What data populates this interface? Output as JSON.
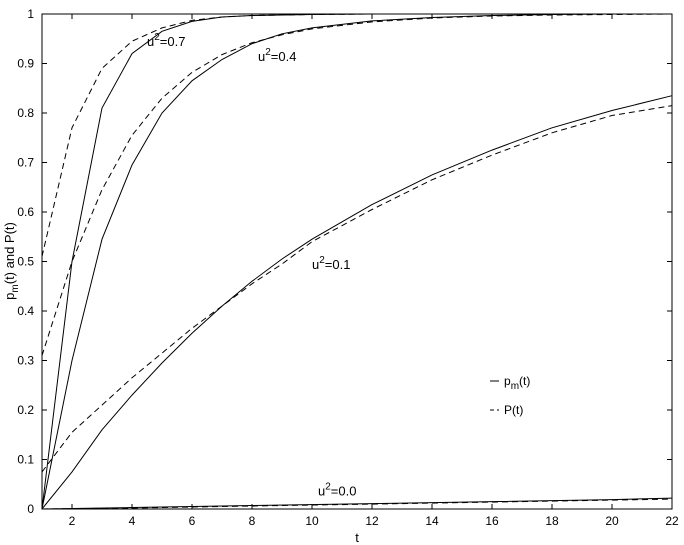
{
  "chart_data": {
    "type": "line",
    "title": "",
    "xlabel": "t",
    "ylabel": {
      "prefix": "p",
      "sub": "m",
      "suffix": "(t) and P(t)"
    },
    "xlim": [
      1,
      22
    ],
    "ylim": [
      0,
      1
    ],
    "xticks": [
      2,
      4,
      6,
      8,
      10,
      12,
      14,
      16,
      18,
      20,
      22
    ],
    "yticks": [
      0,
      0.1,
      0.2,
      0.3,
      0.4,
      0.5,
      0.6,
      0.7,
      0.8,
      0.9,
      1
    ],
    "grid": false,
    "legend": {
      "placement": "lower-right inside plot",
      "entries": [
        {
          "base": "p",
          "sub": "m",
          "rest": "(t)",
          "style": "solid"
        },
        {
          "base": "P(t)",
          "sub": "",
          "rest": "",
          "style": "dashed"
        }
      ]
    },
    "series": [
      {
        "style": "solid",
        "curve": "u2=0.7",
        "x": [
          1,
          2,
          3,
          4,
          5,
          6,
          7,
          8,
          10,
          12,
          14,
          16,
          18,
          20,
          22
        ],
        "y": [
          0,
          0.5,
          0.81,
          0.92,
          0.965,
          0.985,
          0.994,
          0.997,
          0.999,
          1,
          1,
          1,
          1,
          1,
          1
        ]
      },
      {
        "style": "dashed",
        "curve": "u2=0.7",
        "x": [
          1,
          2,
          3,
          4,
          5,
          6,
          7,
          8,
          10,
          12,
          14,
          16,
          18,
          20,
          22
        ],
        "y": [
          0.51,
          0.77,
          0.89,
          0.945,
          0.972,
          0.987,
          0.994,
          0.997,
          0.999,
          1,
          1,
          1,
          1,
          1,
          1
        ]
      },
      {
        "style": "solid",
        "curve": "u2=0.4",
        "x": [
          1,
          2,
          3,
          4,
          5,
          6,
          7,
          8,
          9,
          10,
          12,
          14,
          16,
          18,
          20,
          22
        ],
        "y": [
          0,
          0.3,
          0.545,
          0.695,
          0.8,
          0.865,
          0.908,
          0.94,
          0.96,
          0.972,
          0.986,
          0.993,
          0.997,
          0.999,
          1,
          1
        ]
      },
      {
        "style": "dashed",
        "curve": "u2=0.4",
        "x": [
          1,
          2,
          3,
          4,
          5,
          6,
          7,
          8,
          9,
          10,
          12,
          14,
          16,
          18,
          20,
          22
        ],
        "y": [
          0.31,
          0.5,
          0.645,
          0.755,
          0.83,
          0.882,
          0.918,
          0.942,
          0.958,
          0.97,
          0.984,
          0.992,
          0.996,
          0.998,
          0.999,
          1
        ]
      },
      {
        "style": "solid",
        "curve": "u2=0.1",
        "x": [
          1,
          2,
          3,
          4,
          5,
          6,
          7,
          8,
          9,
          10,
          12,
          14,
          16,
          18,
          20,
          22
        ],
        "y": [
          0,
          0.075,
          0.16,
          0.23,
          0.295,
          0.355,
          0.41,
          0.46,
          0.505,
          0.545,
          0.615,
          0.675,
          0.725,
          0.77,
          0.805,
          0.835
        ]
      },
      {
        "style": "dashed",
        "curve": "u2=0.1",
        "x": [
          1,
          2,
          3,
          4,
          5,
          6,
          7,
          8,
          9,
          10,
          12,
          14,
          16,
          18,
          20,
          22
        ],
        "y": [
          0.075,
          0.155,
          0.21,
          0.265,
          0.315,
          0.365,
          0.41,
          0.455,
          0.495,
          0.54,
          0.605,
          0.665,
          0.715,
          0.76,
          0.795,
          0.815
        ]
      },
      {
        "style": "solid",
        "curve": "u2=0.0",
        "x": [
          1,
          4,
          8,
          12,
          16,
          20,
          22
        ],
        "y": [
          0,
          0.003,
          0.007,
          0.011,
          0.015,
          0.019,
          0.022
        ]
      },
      {
        "style": "dashed",
        "curve": "u2=0.0",
        "x": [
          1,
          4,
          8,
          12,
          16,
          20,
          22
        ],
        "y": [
          0,
          0.002,
          0.006,
          0.01,
          0.014,
          0.018,
          0.02
        ]
      }
    ],
    "annotations": [
      {
        "base": "u",
        "sup": "2",
        "rest": "=0.7",
        "x": 4.5,
        "y": 0.935
      },
      {
        "base": "u",
        "sup": "2",
        "rest": "=0.4",
        "x": 8.2,
        "y": 0.905
      },
      {
        "base": "u",
        "sup": "2",
        "rest": "=0.1",
        "x": 10.0,
        "y": 0.485
      },
      {
        "base": "u",
        "sup": "2",
        "rest": "=0.0",
        "x": 10.2,
        "y": 0.027
      }
    ]
  }
}
